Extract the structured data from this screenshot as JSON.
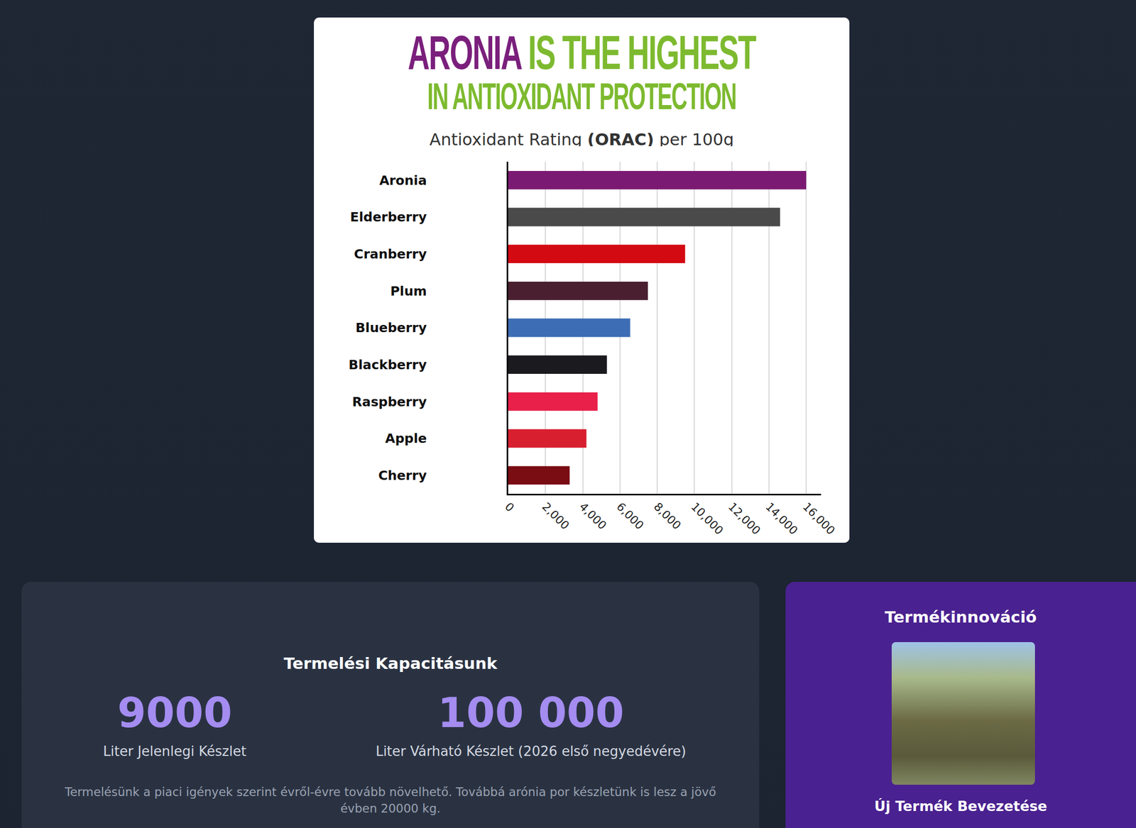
{
  "chart_data": {
    "type": "bar",
    "orientation": "horizontal",
    "title": "ARONIA IS THE HIGHEST IN ANTIOXIDANT PROTECTION",
    "subtitle": "Antioxidant Rating (ORAC) per 100g",
    "categories": [
      "Aronia",
      "Elderberry",
      "Cranberry",
      "Plum",
      "Blueberry",
      "Blackberry",
      "Raspberry",
      "Apple",
      "Cherry"
    ],
    "values": [
      16000,
      14600,
      9500,
      7500,
      6550,
      5300,
      4800,
      4200,
      3300
    ],
    "colors": [
      "#7b1a73",
      "#4a4a4a",
      "#d40a12",
      "#4a2030",
      "#3d6db5",
      "#1a1a1f",
      "#e8204a",
      "#d81f30",
      "#7a0c14"
    ],
    "xlim": [
      0,
      16800
    ],
    "xticks": [
      0,
      {
        "value": 2000,
        "label": "2,000"
      },
      {
        "value": 4000,
        "label": "4,000"
      },
      {
        "value": 6000,
        "label": "6,000"
      },
      {
        "value": 8000,
        "label": "8,000"
      },
      {
        "value": 10000,
        "label": "10,000"
      },
      {
        "value": 12000,
        "label": "12,000"
      },
      {
        "value": 14000,
        "label": "14,000"
      },
      {
        "value": 16000,
        "label": "16,000"
      }
    ],
    "grid": true
  },
  "page": {
    "capacity": {
      "title": "Termelési Kapacitásunk",
      "stats": [
        {
          "value": "9000",
          "label": "Liter Jelenlegi Készlet"
        },
        {
          "value": "100 000",
          "label": "Liter Várható Készlet (2026 első negyedévére)"
        }
      ],
      "note": "Termelésünk a piaci igények szerint évről-évre tovább növelhető. Továbbá arónia por készletünk is lesz a jövő évben 20000 kg."
    },
    "innovation": {
      "title": "Termékinnováció",
      "caption": "Új Termék Bevezetése"
    }
  }
}
